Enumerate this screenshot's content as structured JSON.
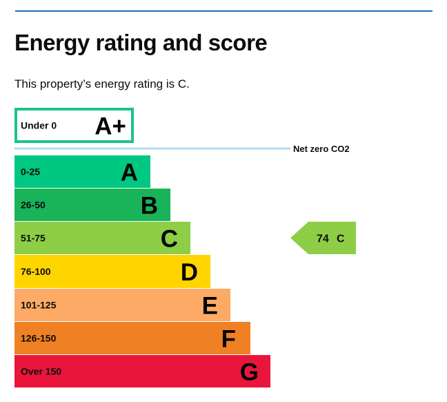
{
  "page": {
    "title": "Energy rating and score",
    "rating_sentence": "This property’s energy rating is C."
  },
  "chart_data": {
    "type": "bar",
    "bands": [
      {
        "letter": "A+",
        "range": "Under 0",
        "color": "#1bc38b",
        "outline_only": true
      },
      {
        "letter": "A",
        "range": "0-25",
        "color": "#00c781"
      },
      {
        "letter": "B",
        "range": "26-50",
        "color": "#19b459"
      },
      {
        "letter": "C",
        "range": "51-75",
        "color": "#8dce46"
      },
      {
        "letter": "D",
        "range": "76-100",
        "color": "#ffd500"
      },
      {
        "letter": "E",
        "range": "101-125",
        "color": "#fcaa65"
      },
      {
        "letter": "F",
        "range": "126-150",
        "color": "#ef8023"
      },
      {
        "letter": "G",
        "range": "Over 150",
        "color": "#e9153b"
      }
    ],
    "net_zero_label": "Net zero CO2",
    "net_zero_line_color": "#b1daee",
    "current": {
      "score": "74",
      "letter": "C",
      "band": "C",
      "color": "#8dce46"
    }
  }
}
